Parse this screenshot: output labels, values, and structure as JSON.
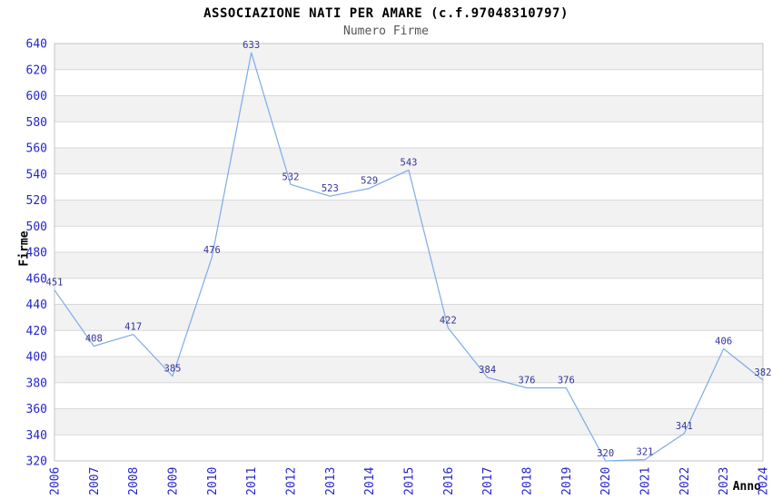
{
  "chart_data": {
    "type": "line",
    "title": "ASSOCIAZIONE NATI PER AMARE (c.f.97048310797)",
    "subtitle": "Numero Firme",
    "xlabel": "Anno",
    "ylabel": "Firme",
    "categories": [
      "2006",
      "2007",
      "2008",
      "2009",
      "2010",
      "2011",
      "2012",
      "2013",
      "2014",
      "2015",
      "2016",
      "2017",
      "2018",
      "2019",
      "2020",
      "2021",
      "2022",
      "2023",
      "2024"
    ],
    "values": [
      451,
      408,
      417,
      385,
      476,
      633,
      532,
      523,
      529,
      543,
      422,
      384,
      376,
      376,
      320,
      321,
      341,
      406,
      382
    ],
    "yticks": [
      320,
      340,
      360,
      380,
      400,
      420,
      440,
      460,
      480,
      500,
      520,
      540,
      560,
      580,
      600,
      620,
      640
    ],
    "ylim": [
      320,
      640
    ],
    "grid": "horizontal-alternating-bands",
    "legend": "none",
    "point_labels_visible": true,
    "colors": {
      "line": "#7dabe8",
      "point_label": "#333399",
      "tick_label": "#2525cc",
      "band_fill": "#f2f2f2",
      "grid_line": "#d8d8d8",
      "plot_border": "#c4c4c4",
      "title": "#000000",
      "subtitle": "#555555",
      "axis_title": "#000000",
      "background": "#ffffff"
    }
  }
}
